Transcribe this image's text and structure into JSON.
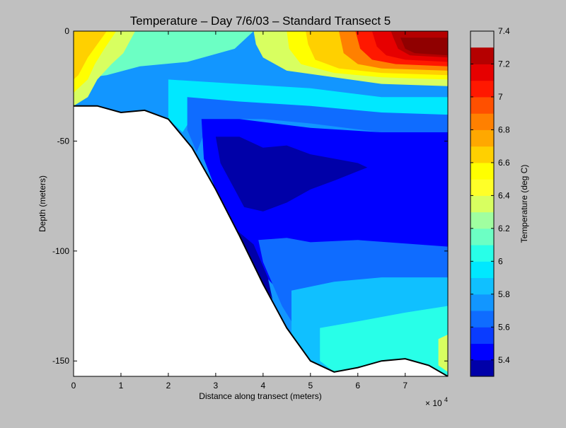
{
  "chart_data": {
    "type": "contourf",
    "title": "Temperature – Day 7/6/03 – Standard Transect 5",
    "xlabel": "Distance along transect (meters)",
    "ylabel": "Depth (meters)",
    "x_exponent_label": "× 10",
    "x_exponent_power": "4",
    "xlim": [
      0,
      7.9
    ],
    "ylim": [
      -157,
      0
    ],
    "x_ticks": [
      "0",
      "1",
      "2",
      "3",
      "4",
      "5",
      "6",
      "7"
    ],
    "y_ticks": [
      "0",
      "-50",
      "-100",
      "-150"
    ],
    "colorbar": {
      "label": "Temperature (deg C)",
      "range": [
        5.3,
        7.4
      ],
      "ticks": [
        "5.4",
        "5.6",
        "5.8",
        "6",
        "6.2",
        "6.4",
        "6.6",
        "6.8",
        "7",
        "7.2",
        "7.4"
      ],
      "levels": [
        5.3,
        5.4,
        5.5,
        5.6,
        5.7,
        5.8,
        5.9,
        6.0,
        6.1,
        6.2,
        6.3,
        6.4,
        6.5,
        6.6,
        6.7,
        6.8,
        6.9,
        7.0,
        7.1,
        7.2,
        7.3,
        7.4
      ],
      "colors": [
        "#0000a8",
        "#0000ff",
        "#0a3cff",
        "#0f6cff",
        "#1296ff",
        "#10c0ff",
        "#00e8ff",
        "#28ffe8",
        "#6cffc4",
        "#a0ffa0",
        "#d8ff60",
        "#ffff28",
        "#ffff00",
        "#ffd000",
        "#ffa800",
        "#ff8000",
        "#ff5000",
        "#ff1800",
        "#e60000",
        "#b50000",
        "#900000"
      ]
    },
    "bottom_profile": [
      [
        0,
        -34
      ],
      [
        0.5,
        -34
      ],
      [
        1,
        -37
      ],
      [
        1.5,
        -36
      ],
      [
        2,
        -40
      ],
      [
        2.5,
        -53
      ],
      [
        3,
        -72
      ],
      [
        3.5,
        -93
      ],
      [
        4,
        -115
      ],
      [
        4.5,
        -135
      ],
      [
        5,
        -150
      ],
      [
        5.5,
        -155
      ],
      [
        6,
        -153
      ],
      [
        6.5,
        -150
      ],
      [
        7,
        -149
      ],
      [
        7.5,
        -152
      ],
      [
        7.9,
        -157
      ]
    ],
    "contour_regions": [
      {
        "temp": 5.7,
        "polygon": [
          [
            0,
            0
          ],
          [
            7.9,
            0
          ],
          [
            7.9,
            -157
          ],
          [
            0,
            -157
          ]
        ]
      },
      {
        "temp": 6.1,
        "polygon": [
          [
            0,
            0
          ],
          [
            3.8,
            0
          ],
          [
            3.4,
            -8
          ],
          [
            2.4,
            -14
          ],
          [
            1.4,
            -16
          ],
          [
            0.7,
            -20
          ],
          [
            0,
            -22
          ]
        ]
      },
      {
        "temp": 6.3,
        "polygon": [
          [
            0,
            0
          ],
          [
            1.3,
            0
          ],
          [
            1.05,
            -10
          ],
          [
            0.8,
            -15
          ],
          [
            0.5,
            -22
          ],
          [
            0.3,
            -30
          ],
          [
            0,
            -34
          ]
        ]
      },
      {
        "temp": 6.5,
        "polygon": [
          [
            0,
            0
          ],
          [
            0.9,
            0
          ],
          [
            0.65,
            -8
          ],
          [
            0.45,
            -15
          ],
          [
            0.3,
            -22
          ],
          [
            0,
            -28
          ]
        ]
      },
      {
        "temp": 6.6,
        "polygon": [
          [
            0,
            0
          ],
          [
            0.7,
            0
          ],
          [
            0.5,
            -6
          ],
          [
            0.3,
            -12
          ],
          [
            0.1,
            -20
          ],
          [
            0,
            -22
          ]
        ]
      },
      {
        "temp": 6.3,
        "polygon": [
          [
            3.8,
            0
          ],
          [
            7.9,
            0
          ],
          [
            7.9,
            -25
          ],
          [
            6.5,
            -24
          ],
          [
            5.5,
            -21
          ],
          [
            4.5,
            -18
          ],
          [
            4.0,
            -12
          ],
          [
            3.85,
            -6
          ]
        ]
      },
      {
        "temp": 6.5,
        "polygon": [
          [
            4.5,
            0
          ],
          [
            7.9,
            0
          ],
          [
            7.9,
            -22
          ],
          [
            6.5,
            -21
          ],
          [
            5.5,
            -19
          ],
          [
            4.8,
            -15
          ],
          [
            4.55,
            -8
          ]
        ]
      },
      {
        "temp": 6.6,
        "polygon": [
          [
            4.9,
            0
          ],
          [
            7.9,
            0
          ],
          [
            7.9,
            -20
          ],
          [
            6.5,
            -19
          ],
          [
            5.6,
            -17
          ],
          [
            5.1,
            -13
          ],
          [
            4.95,
            -6
          ]
        ]
      },
      {
        "temp": 6.8,
        "polygon": [
          [
            5.6,
            0
          ],
          [
            7.9,
            0
          ],
          [
            7.9,
            -18
          ],
          [
            6.5,
            -17
          ],
          [
            6.0,
            -15
          ],
          [
            5.7,
            -10
          ]
        ]
      },
      {
        "temp": 7.0,
        "polygon": [
          [
            5.95,
            0
          ],
          [
            7.9,
            0
          ],
          [
            7.9,
            -16
          ],
          [
            6.8,
            -15
          ],
          [
            6.3,
            -13
          ],
          [
            6.05,
            -8
          ]
        ]
      },
      {
        "temp": 7.1,
        "polygon": [
          [
            6.3,
            0
          ],
          [
            7.9,
            0
          ],
          [
            7.9,
            -14
          ],
          [
            7.0,
            -13
          ],
          [
            6.6,
            -11
          ],
          [
            6.4,
            -7
          ]
        ]
      },
      {
        "temp": 7.2,
        "polygon": [
          [
            6.7,
            0
          ],
          [
            7.9,
            0
          ],
          [
            7.9,
            -12
          ],
          [
            7.1,
            -11
          ],
          [
            6.85,
            -8
          ],
          [
            6.75,
            -3
          ]
        ]
      },
      {
        "temp": 7.4,
        "polygon": [
          [
            6.9,
            -3
          ],
          [
            7.9,
            -3
          ],
          [
            7.9,
            -11
          ],
          [
            7.2,
            -10
          ],
          [
            7.0,
            -8
          ]
        ]
      },
      {
        "temp": 5.9,
        "polygon": [
          [
            2.0,
            -22
          ],
          [
            3.5,
            -24
          ],
          [
            5.0,
            -26
          ],
          [
            6.5,
            -30
          ],
          [
            7.9,
            -30
          ],
          [
            7.9,
            -38
          ],
          [
            6.5,
            -38
          ],
          [
            5.0,
            -35
          ],
          [
            3.5,
            -33
          ],
          [
            2.6,
            -36
          ],
          [
            2.3,
            -46
          ],
          [
            2.0,
            -40
          ]
        ]
      },
      {
        "temp": 5.6,
        "polygon": [
          [
            2.4,
            -30
          ],
          [
            3.5,
            -32
          ],
          [
            5.0,
            -34
          ],
          [
            6.5,
            -37
          ],
          [
            7.9,
            -38
          ],
          [
            7.9,
            -46
          ],
          [
            6.5,
            -46
          ],
          [
            5.0,
            -42
          ],
          [
            4.0,
            -40
          ],
          [
            3.3,
            -40
          ],
          [
            2.8,
            -44
          ],
          [
            2.6,
            -55
          ],
          [
            2.4,
            -45
          ]
        ]
      },
      {
        "temp": 5.4,
        "polygon": [
          [
            2.7,
            -40
          ],
          [
            3.5,
            -40
          ],
          [
            5.0,
            -44
          ],
          [
            6.5,
            -46
          ],
          [
            7.9,
            -46
          ],
          [
            7.9,
            -110
          ],
          [
            6.5,
            -112
          ],
          [
            5.5,
            -115
          ],
          [
            5.0,
            -118
          ],
          [
            4.5,
            -120
          ],
          [
            4.2,
            -115
          ],
          [
            3.9,
            -108
          ],
          [
            3.5,
            -93
          ],
          [
            3.0,
            -72
          ],
          [
            2.75,
            -58
          ]
        ]
      },
      {
        "temp": 5.3,
        "polygon": [
          [
            3.0,
            -48
          ],
          [
            3.5,
            -48
          ],
          [
            4.0,
            -53
          ],
          [
            4.5,
            -52
          ],
          [
            5.0,
            -56
          ],
          [
            5.5,
            -58
          ],
          [
            6.0,
            -60
          ],
          [
            6.2,
            -62
          ],
          [
            5.5,
            -68
          ],
          [
            5.0,
            -72
          ],
          [
            4.5,
            -78
          ],
          [
            4.0,
            -82
          ],
          [
            3.6,
            -80
          ],
          [
            3.4,
            -72
          ],
          [
            3.1,
            -60
          ]
        ]
      },
      {
        "temp": 5.3,
        "polygon": [
          [
            3.3,
            -88
          ],
          [
            3.8,
            -97
          ],
          [
            4.1,
            -112
          ],
          [
            4.2,
            -122
          ],
          [
            4.0,
            -115
          ],
          [
            3.6,
            -100
          ]
        ]
      },
      {
        "temp": 5.6,
        "polygon": [
          [
            3.9,
            -95
          ],
          [
            4.5,
            -94
          ],
          [
            5.0,
            -96
          ],
          [
            6.0,
            -95
          ],
          [
            7.9,
            -98
          ],
          [
            7.9,
            -118
          ],
          [
            6.5,
            -120
          ],
          [
            5.5,
            -125
          ],
          [
            5.0,
            -128
          ],
          [
            4.6,
            -132
          ],
          [
            4.4,
            -125
          ],
          [
            4.2,
            -115
          ],
          [
            4.0,
            -105
          ]
        ]
      },
      {
        "temp": 5.8,
        "polygon": [
          [
            4.6,
            -118
          ],
          [
            5.5,
            -114
          ],
          [
            6.5,
            -112
          ],
          [
            7.9,
            -112
          ],
          [
            7.9,
            -157
          ],
          [
            7.5,
            -152
          ],
          [
            7.0,
            -149
          ],
          [
            6.5,
            -150
          ],
          [
            6.0,
            -153
          ],
          [
            5.5,
            -155
          ],
          [
            5.0,
            -150
          ],
          [
            4.6,
            -138
          ]
        ]
      },
      {
        "temp": 6.0,
        "polygon": [
          [
            5.2,
            -135
          ],
          [
            6.0,
            -132
          ],
          [
            7.0,
            -128
          ],
          [
            7.9,
            -125
          ],
          [
            7.9,
            -157
          ],
          [
            7.5,
            -152
          ],
          [
            7.0,
            -149
          ],
          [
            6.5,
            -150
          ],
          [
            6.0,
            -153
          ],
          [
            5.5,
            -155
          ],
          [
            5.2,
            -150
          ]
        ]
      },
      {
        "temp": 6.3,
        "polygon": [
          [
            7.7,
            -140
          ],
          [
            7.9,
            -138
          ],
          [
            7.9,
            -155
          ],
          [
            7.7,
            -152
          ]
        ]
      }
    ]
  }
}
